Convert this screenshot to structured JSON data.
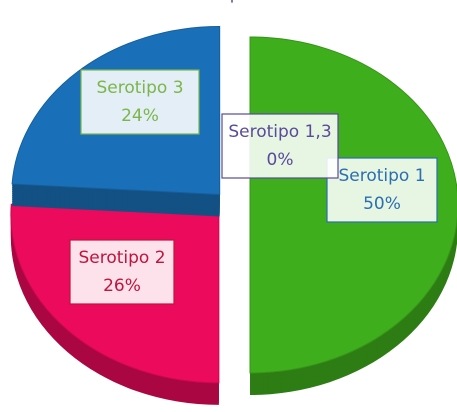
{
  "chart_data": {
    "type": "pie",
    "categories": [
      "Serotipo 1",
      "Serotipo 2",
      "Serotipo 3",
      "Serotipo 1,3"
    ],
    "values": [
      50,
      26,
      24,
      0
    ],
    "value_labels": [
      "50%",
      "26%",
      "24%",
      "0%"
    ],
    "colors": [
      "#3fae1c",
      "#ec0a5c",
      "#1a70b8",
      "#5a4a9a"
    ],
    "label_colors": [
      "#2a6fb0",
      "#c0143c",
      "#7ab648",
      "#5a4a9a"
    ]
  }
}
